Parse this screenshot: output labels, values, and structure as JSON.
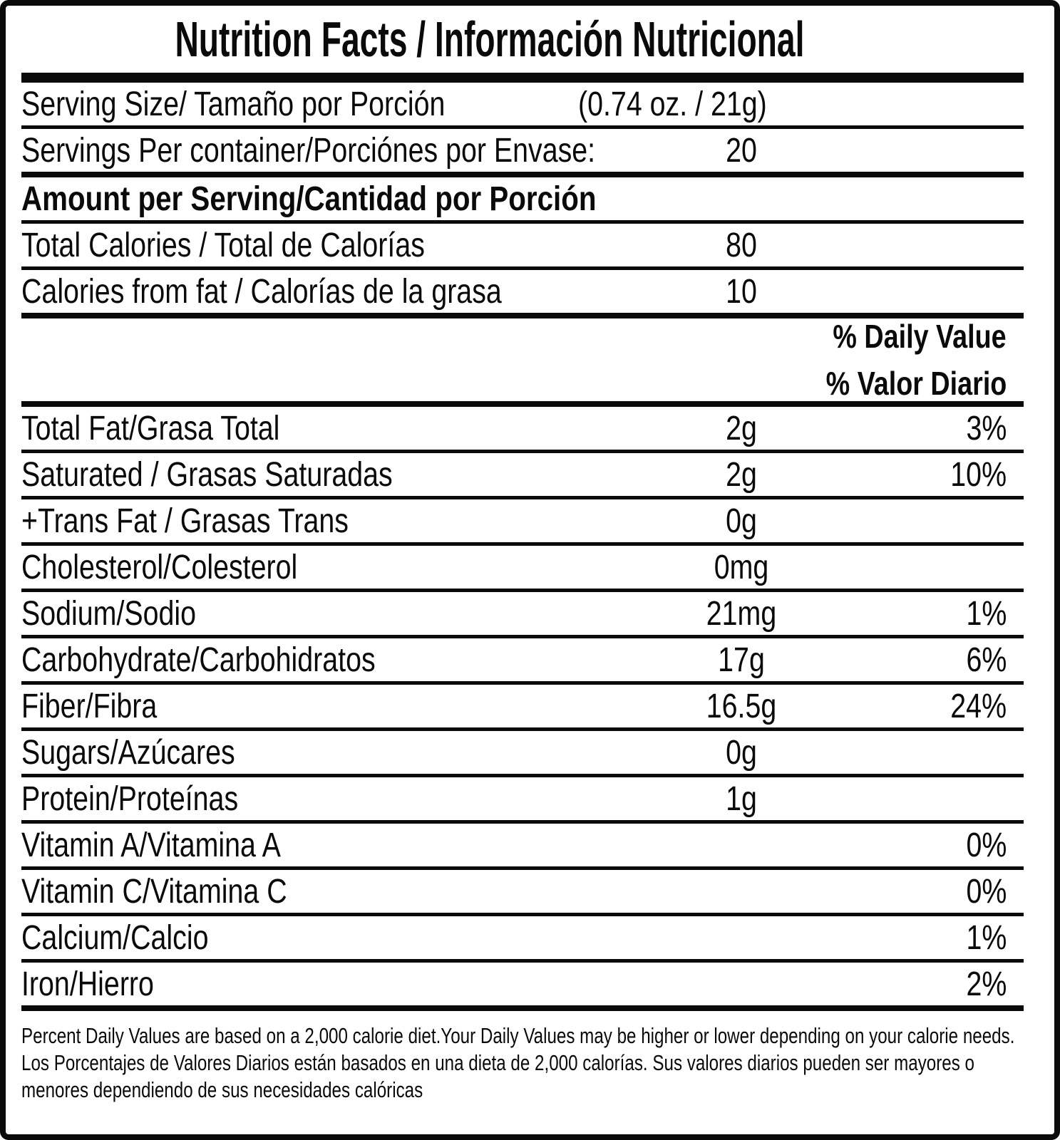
{
  "title": "Nutrition Facts / Información Nutricional",
  "rows": [
    {
      "label": "Serving Size/ Tamaño por Porción",
      "value": "(0.74 oz. / 21g)",
      "value_layout": "inline",
      "rule": "thin"
    },
    {
      "label": "Servings Per container/Porciónes por Envase:",
      "value": "20",
      "rule": "thick"
    },
    {
      "label": "Amount per Serving/Cantidad por Porción",
      "bold": true,
      "rule": "thin"
    },
    {
      "label": "Total Calories / Total de Calorías",
      "value": "80",
      "rule": "thin"
    },
    {
      "label": "Calories from fat / Calorías de la grasa",
      "value": "10",
      "rule": "thick"
    },
    {
      "type": "dv",
      "lines": [
        "% Daily Value",
        "% Valor Diario"
      ],
      "rule": "thick"
    },
    {
      "label": "Total Fat/Grasa Total",
      "value": "2g",
      "pct": "3%",
      "rule": "thin"
    },
    {
      "label": "Saturated / Grasas Saturadas",
      "value": "2g",
      "pct": "10%",
      "rule": "thin"
    },
    {
      "label": "+Trans Fat / Grasas Trans",
      "value": "0g",
      "rule": "thin"
    },
    {
      "label": "Cholesterol/Colesterol",
      "value": "0mg",
      "rule": "thin"
    },
    {
      "label": "Sodium/Sodio",
      "value": "21mg",
      "pct": "1%",
      "rule": "thin"
    },
    {
      "label": "Carbohydrate/Carbohidratos",
      "value": "17g",
      "pct": "6%",
      "rule": "thin"
    },
    {
      "label": "Fiber/Fibra",
      "value": "16.5g",
      "pct": "24%",
      "rule": "thin"
    },
    {
      "label": "Sugars/Azúcares",
      "value": "0g",
      "rule": "thin"
    },
    {
      "label": "Protein/Proteínas",
      "value": "1g",
      "rule": "thin"
    },
    {
      "label": "Vitamin A/Vitamina A",
      "pct": "0%",
      "rule": "thin"
    },
    {
      "label": "Vitamin C/Vitamina C",
      "pct": "0%",
      "rule": "thin"
    },
    {
      "label": "Calcium/Calcio",
      "pct": "1%",
      "rule": "thin"
    },
    {
      "label": "Iron/Hierro",
      "pct": "2%",
      "rule": "thick"
    }
  ],
  "footnote": {
    "en": "Percent Daily Values are based on a 2,000 calorie diet.Your Daily Values may be higher or lower depending on your calorie needs.",
    "es": "Los Porcentajes de Valores Diarios están basados en una dieta de 2,000 calorías. Sus valores diarios pueden ser mayores o menores dependiendo de sus necesidades calóricas"
  },
  "colors": {
    "ink": "#0a0a0a",
    "background": "#ffffff"
  }
}
